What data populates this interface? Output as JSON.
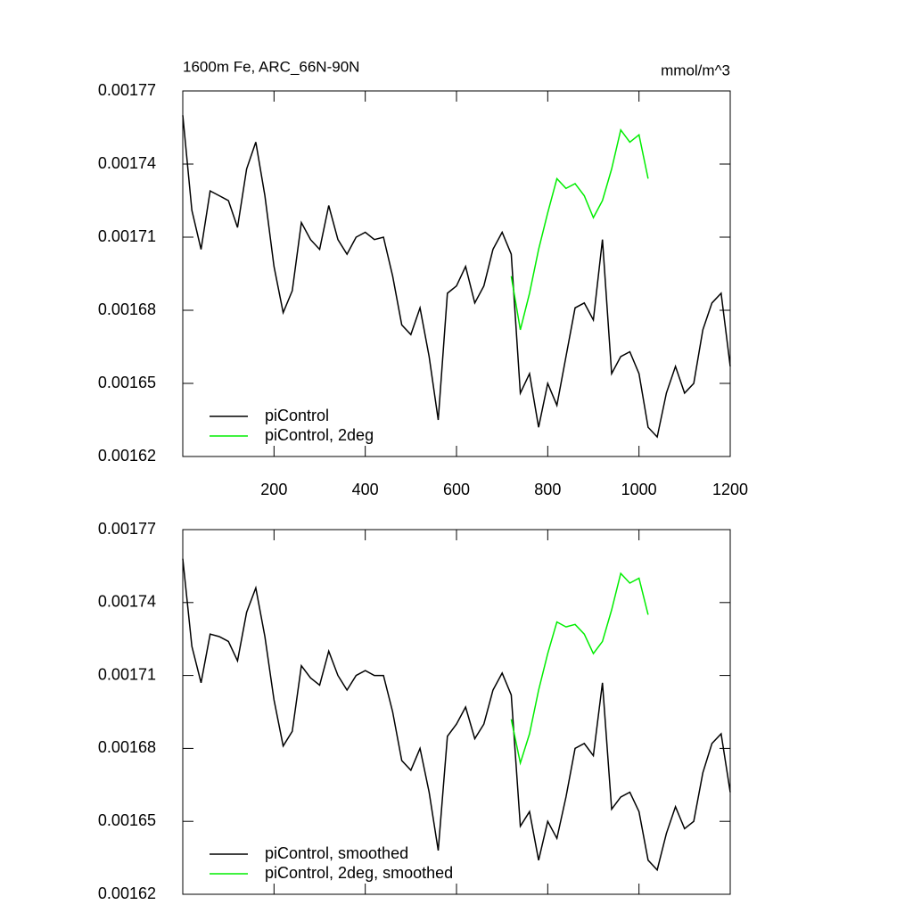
{
  "chart_data": [
    {
      "type": "line",
      "title": "1600m Fe, ARC_66N-90N",
      "units_label": "mmol/m^3",
      "x": [
        0,
        20,
        40,
        60,
        80,
        100,
        120,
        140,
        160,
        180,
        200,
        220,
        240,
        260,
        280,
        300,
        320,
        340,
        360,
        380,
        400,
        420,
        440,
        460,
        480,
        500,
        520,
        540,
        560,
        580,
        600,
        620,
        640,
        660,
        680,
        700,
        720,
        740,
        760,
        780,
        800,
        820,
        840,
        860,
        880,
        900,
        920,
        940,
        960,
        980,
        1000,
        1020,
        1040,
        1060,
        1080,
        1100,
        1120,
        1140,
        1160,
        1180,
        1200
      ],
      "series": [
        {
          "name": "piControl",
          "color": "#000000",
          "values": [
            0.00176,
            0.001721,
            0.001705,
            0.001729,
            0.001727,
            0.001725,
            0.001714,
            0.001738,
            0.001749,
            0.001727,
            0.001698,
            0.001679,
            0.001688,
            0.001716,
            0.001709,
            0.001705,
            0.001723,
            0.001709,
            0.001703,
            0.00171,
            0.001712,
            0.001709,
            0.00171,
            0.001694,
            0.001674,
            0.00167,
            0.001681,
            0.001661,
            0.001635,
            0.001687,
            0.00169,
            0.001698,
            0.001683,
            0.00169,
            0.001705,
            0.001712,
            0.001703,
            0.001646,
            0.001654,
            0.001632,
            0.00165,
            0.001641,
            0.001661,
            0.001681,
            0.001683,
            0.001676,
            0.001709,
            0.001654,
            0.001661,
            0.001663,
            0.001654,
            0.001632,
            0.001628,
            0.001646,
            0.001657,
            0.001646,
            0.00165,
            0.001672,
            0.001683,
            0.001687,
            0.001657
          ]
        },
        {
          "name": "piControl, 2deg",
          "color": "#00ee00",
          "values": [
            null,
            null,
            null,
            null,
            null,
            null,
            null,
            null,
            null,
            null,
            null,
            null,
            null,
            null,
            null,
            null,
            null,
            null,
            null,
            null,
            null,
            null,
            null,
            null,
            null,
            null,
            null,
            null,
            null,
            null,
            null,
            null,
            null,
            null,
            null,
            null,
            0.001694,
            0.001672,
            0.001687,
            0.001705,
            0.00172,
            0.001734,
            0.00173,
            0.001732,
            0.001727,
            0.001718,
            0.001725,
            0.001738,
            0.001754,
            0.001749,
            0.001752,
            0.001734,
            null,
            null,
            null,
            null,
            null,
            null,
            null,
            null,
            null
          ]
        }
      ],
      "xlim": [
        0,
        1200
      ],
      "xticks": [
        200,
        400,
        600,
        800,
        1000,
        1200
      ],
      "xtick_labels": true,
      "ylim": [
        0.00162,
        0.00177
      ],
      "yticks": [
        0.00162,
        0.00165,
        0.00168,
        0.00171,
        0.00174,
        0.00177
      ],
      "legend": "lower left"
    },
    {
      "type": "line",
      "x": [
        0,
        20,
        40,
        60,
        80,
        100,
        120,
        140,
        160,
        180,
        200,
        220,
        240,
        260,
        280,
        300,
        320,
        340,
        360,
        380,
        400,
        420,
        440,
        460,
        480,
        500,
        520,
        540,
        560,
        580,
        600,
        620,
        640,
        660,
        680,
        700,
        720,
        740,
        760,
        780,
        800,
        820,
        840,
        860,
        880,
        900,
        920,
        940,
        960,
        980,
        1000,
        1020,
        1040,
        1060,
        1080,
        1100,
        1120,
        1140,
        1160,
        1180,
        1200
      ],
      "series": [
        {
          "name": "piControl, smoothed",
          "color": "#000000",
          "values": [
            0.001758,
            0.001722,
            0.001707,
            0.001727,
            0.001726,
            0.001724,
            0.001716,
            0.001736,
            0.001746,
            0.001726,
            0.0017,
            0.001681,
            0.001687,
            0.001714,
            0.001709,
            0.001706,
            0.00172,
            0.00171,
            0.001704,
            0.00171,
            0.001712,
            0.00171,
            0.00171,
            0.001695,
            0.001675,
            0.001671,
            0.00168,
            0.001662,
            0.001638,
            0.001685,
            0.00169,
            0.001697,
            0.001684,
            0.00169,
            0.001704,
            0.001711,
            0.001702,
            0.001648,
            0.001654,
            0.001634,
            0.00165,
            0.001643,
            0.00166,
            0.00168,
            0.001682,
            0.001677,
            0.001707,
            0.001655,
            0.00166,
            0.001662,
            0.001654,
            0.001634,
            0.00163,
            0.001645,
            0.001656,
            0.001647,
            0.00165,
            0.00167,
            0.001682,
            0.001686,
            0.001662
          ]
        },
        {
          "name": "piControl, 2deg, smoothed",
          "color": "#00ee00",
          "values": [
            null,
            null,
            null,
            null,
            null,
            null,
            null,
            null,
            null,
            null,
            null,
            null,
            null,
            null,
            null,
            null,
            null,
            null,
            null,
            null,
            null,
            null,
            null,
            null,
            null,
            null,
            null,
            null,
            null,
            null,
            null,
            null,
            null,
            null,
            null,
            null,
            0.001692,
            0.001674,
            0.001686,
            0.001704,
            0.001719,
            0.001732,
            0.00173,
            0.001731,
            0.001727,
            0.001719,
            0.001724,
            0.001737,
            0.001752,
            0.001748,
            0.00175,
            0.001735,
            null,
            null,
            null,
            null,
            null,
            null,
            null,
            null,
            null
          ]
        }
      ],
      "xlim": [
        0,
        1200
      ],
      "xticks": [
        200,
        400,
        600,
        800,
        1000,
        1200
      ],
      "xtick_labels": false,
      "ylim": [
        0.00162,
        0.00177
      ],
      "yticks": [
        0.00162,
        0.00165,
        0.00168,
        0.00171,
        0.00174,
        0.00177
      ],
      "legend": "lower left"
    }
  ]
}
